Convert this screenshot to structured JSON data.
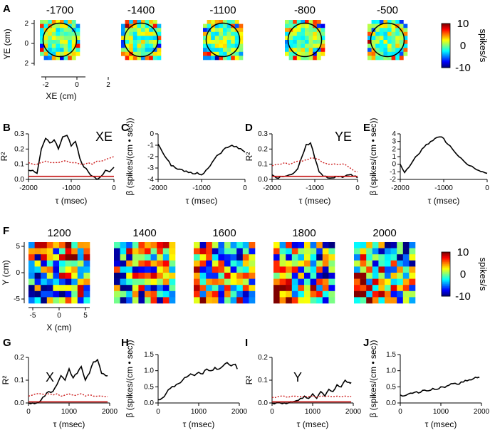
{
  "panel_letters": {
    "A": "A",
    "B": "B",
    "C": "C",
    "D": "D",
    "E": "E",
    "F": "F",
    "G": "G",
    "H": "H",
    "I": "I",
    "J": "J"
  },
  "colors": {
    "line": "#000000",
    "threshold": "#c41212",
    "threshold_dash": "#cc1b1b"
  },
  "chart_data": [
    {
      "id": "A",
      "type": "heatmap",
      "titles": [
        "-1700",
        "-1400",
        "-1100",
        "-800",
        "-500"
      ],
      "xlabel": "XE (cm)",
      "ylabel": "YE (cm)",
      "xticks": [
        "-2",
        "0",
        "2"
      ],
      "yticks": [
        "2",
        "0",
        "2"
      ],
      "colorbar": {
        "label": "spikes/s",
        "ticks": [
          "10",
          "0",
          "-10"
        ],
        "range": [
          -10,
          10
        ]
      },
      "grid_size": 10
    },
    {
      "id": "B",
      "type": "line",
      "annotation": "XE",
      "xlabel": "τ (msec)",
      "ylabel": "R²",
      "xlim": [
        -2000,
        0
      ],
      "ylim": [
        0,
        0.3
      ],
      "xticks": [
        "-2000",
        "-1000",
        "0"
      ],
      "yticks": [
        "0.0",
        "0.1",
        "0.2",
        "0.3"
      ],
      "x": [
        -2000,
        -1900,
        -1800,
        -1700,
        -1600,
        -1500,
        -1400,
        -1300,
        -1200,
        -1100,
        -1000,
        -900,
        -800,
        -700,
        -600,
        -500,
        -400,
        -300,
        -200,
        -100,
        0
      ],
      "series": [
        {
          "name": "R2",
          "values": [
            0.06,
            0.06,
            0.04,
            0.2,
            0.27,
            0.24,
            0.26,
            0.2,
            0.28,
            0.29,
            0.22,
            0.25,
            0.14,
            0.08,
            0.05,
            0.02,
            0.0,
            0.02,
            0.06,
            0.05,
            0.08
          ]
        },
        {
          "name": "threshold-99",
          "values": [
            0.11,
            0.1,
            0.1,
            0.11,
            0.12,
            0.11,
            0.11,
            0.11,
            0.12,
            0.12,
            0.11,
            0.11,
            0.1,
            0.1,
            0.11,
            0.1,
            0.12,
            0.12,
            0.13,
            0.14,
            0.15
          ]
        },
        {
          "name": "threshold-95",
          "values": [
            0.02,
            0.02,
            0.02,
            0.02,
            0.02,
            0.02,
            0.02,
            0.02,
            0.02,
            0.02,
            0.02,
            0.02,
            0.02,
            0.02,
            0.02,
            0.02,
            0.02,
            0.02,
            0.02,
            0.02,
            0.02
          ]
        }
      ]
    },
    {
      "id": "C",
      "type": "line",
      "xlabel": "τ (msec)",
      "ylabel": "β (spikes/(cm • sec))",
      "xlim": [
        -2000,
        0
      ],
      "ylim": [
        -4,
        0
      ],
      "xticks": [
        "-2000",
        "-1000",
        "0"
      ],
      "yticks": [
        "0",
        "-1",
        "-2",
        "-3",
        "-4"
      ],
      "x": [
        -2000,
        -1900,
        -1800,
        -1700,
        -1600,
        -1500,
        -1400,
        -1300,
        -1200,
        -1100,
        -1000,
        -900,
        -800,
        -700,
        -600,
        -500,
        -400,
        -300,
        -200,
        -100,
        0
      ],
      "series": [
        {
          "name": "beta",
          "values": [
            -0.9,
            -1.6,
            -2.2,
            -2.8,
            -3.0,
            -3.1,
            -3.3,
            -3.4,
            -3.5,
            -3.4,
            -3.6,
            -3.2,
            -2.8,
            -2.2,
            -1.8,
            -1.4,
            -1.2,
            -1.0,
            -1.1,
            -1.3,
            -1.6
          ]
        }
      ]
    },
    {
      "id": "D",
      "type": "line",
      "annotation": "YE",
      "xlabel": "τ (msec)",
      "ylabel": "R²",
      "xlim": [
        -2000,
        0
      ],
      "ylim": [
        0,
        0.3
      ],
      "xticks": [
        "-2000",
        "-1000",
        "0"
      ],
      "yticks": [
        "0.0",
        "0.1",
        "0.2",
        "0.3"
      ],
      "x": [
        -2000,
        -1900,
        -1800,
        -1700,
        -1600,
        -1500,
        -1400,
        -1300,
        -1200,
        -1100,
        -1000,
        -900,
        -800,
        -700,
        -600,
        -500,
        -400,
        -300,
        -200,
        -100,
        0
      ],
      "series": [
        {
          "name": "R2",
          "values": [
            0.03,
            0.01,
            0.02,
            0.02,
            0.03,
            0.04,
            0.07,
            0.15,
            0.23,
            0.24,
            0.14,
            0.05,
            0.02,
            0.01,
            0.01,
            0.02,
            0.02,
            0.02,
            0.03,
            0.02,
            0.01
          ]
        },
        {
          "name": "threshold-99",
          "values": [
            0.09,
            0.1,
            0.1,
            0.11,
            0.1,
            0.11,
            0.12,
            0.12,
            0.13,
            0.14,
            0.14,
            0.13,
            0.11,
            0.1,
            0.1,
            0.1,
            0.1,
            0.1,
            0.08,
            0.06,
            0.05
          ]
        },
        {
          "name": "threshold-95",
          "values": [
            0.02,
            0.02,
            0.02,
            0.02,
            0.02,
            0.02,
            0.02,
            0.02,
            0.02,
            0.02,
            0.02,
            0.02,
            0.02,
            0.02,
            0.02,
            0.02,
            0.02,
            0.02,
            0.02,
            0.02,
            0.02
          ]
        }
      ]
    },
    {
      "id": "E",
      "type": "line",
      "xlabel": "τ (msec)",
      "ylabel": "β (spikes/(cm • sec))",
      "xlim": [
        -2000,
        0
      ],
      "ylim": [
        -2,
        4
      ],
      "xticks": [
        "-2000",
        "-1000",
        "0"
      ],
      "yticks": [
        "4",
        "3",
        "2",
        "1",
        "0",
        "-1",
        "-2"
      ],
      "x": [
        -2000,
        -1900,
        -1800,
        -1700,
        -1600,
        -1500,
        -1400,
        -1300,
        -1200,
        -1100,
        -1000,
        -900,
        -800,
        -700,
        -600,
        -500,
        -400,
        -300,
        -200,
        -100,
        0
      ],
      "series": [
        {
          "name": "beta",
          "values": [
            0.0,
            -1.1,
            -0.4,
            0.5,
            1.2,
            2.0,
            2.6,
            3.0,
            3.4,
            3.6,
            3.4,
            2.6,
            2.0,
            1.3,
            0.8,
            0.2,
            -0.2,
            -0.5,
            -0.8,
            -1.0,
            -1.2
          ]
        }
      ]
    },
    {
      "id": "F",
      "type": "heatmap",
      "titles": [
        "1200",
        "1400",
        "1600",
        "1800",
        "2000"
      ],
      "xlabel": "X (cm)",
      "ylabel": "Y (cm)",
      "xticks": [
        "-5",
        "0",
        "5"
      ],
      "yticks": [
        "5",
        "0",
        "-5"
      ],
      "colorbar": {
        "label": "spikes/s",
        "ticks": [
          "10",
          "0",
          "-10"
        ],
        "range": [
          -10,
          10
        ]
      },
      "grid_size": 10
    },
    {
      "id": "G",
      "type": "line",
      "annotation": "X",
      "xlabel": "τ (msec)",
      "ylabel": "R²",
      "xlim": [
        0,
        2000
      ],
      "ylim": [
        0,
        0.2
      ],
      "xticks": [
        "0",
        "1000",
        "2000"
      ],
      "yticks": [
        "0.0",
        "0.1",
        "0.2"
      ],
      "x": [
        0,
        100,
        200,
        300,
        400,
        500,
        600,
        700,
        800,
        900,
        1000,
        1100,
        1200,
        1300,
        1400,
        1500,
        1600,
        1700,
        1800,
        1900,
        1950
      ],
      "series": [
        {
          "name": "R2",
          "values": [
            0.0,
            0.0,
            0.0,
            0.01,
            0.03,
            0.05,
            0.05,
            0.08,
            0.12,
            0.1,
            0.15,
            0.11,
            0.13,
            0.16,
            0.1,
            0.13,
            0.18,
            0.19,
            0.13,
            0.12,
            0.12
          ]
        },
        {
          "name": "threshold-99",
          "values": [
            0.03,
            0.035,
            0.04,
            0.04,
            0.035,
            0.04,
            0.035,
            0.04,
            0.03,
            0.035,
            0.04,
            0.035,
            0.035,
            0.04,
            0.03,
            0.035,
            0.03,
            0.03,
            0.03,
            0.028,
            0.028
          ]
        },
        {
          "name": "threshold-95",
          "values": [
            0.005,
            0.005,
            0.005,
            0.005,
            0.005,
            0.005,
            0.005,
            0.005,
            0.005,
            0.005,
            0.005,
            0.005,
            0.005,
            0.005,
            0.005,
            0.005,
            0.005,
            0.005,
            0.005,
            0.005,
            0.005
          ]
        }
      ]
    },
    {
      "id": "H",
      "type": "line",
      "xlabel": "τ (msec)",
      "ylabel": "β (spikes/(cm • sec))",
      "xlim": [
        0,
        2000
      ],
      "ylim": [
        0,
        1.5
      ],
      "xticks": [
        "0",
        "1000",
        "2000"
      ],
      "yticks": [
        "0.0",
        "0.5",
        "1.0",
        "1.5"
      ],
      "x": [
        0,
        100,
        200,
        300,
        400,
        500,
        600,
        700,
        800,
        900,
        1000,
        1100,
        1200,
        1300,
        1400,
        1500,
        1600,
        1700,
        1800,
        1900,
        1950
      ],
      "series": [
        {
          "name": "beta",
          "values": [
            0.1,
            0.15,
            0.3,
            0.45,
            0.5,
            0.6,
            0.7,
            0.8,
            0.9,
            0.85,
            0.95,
            0.9,
            1.05,
            1.0,
            1.1,
            1.05,
            1.15,
            1.25,
            1.15,
            1.2,
            1.05
          ]
        }
      ]
    },
    {
      "id": "I",
      "type": "line",
      "annotation": "Y",
      "xlabel": "τ (msec)",
      "ylabel": "R²",
      "xlim": [
        0,
        2000
      ],
      "ylim": [
        0,
        0.2
      ],
      "xticks": [
        "0",
        "1000",
        "2000"
      ],
      "yticks": [
        "0.0",
        "0.1",
        "0.2"
      ],
      "x": [
        0,
        100,
        200,
        300,
        400,
        500,
        600,
        700,
        800,
        900,
        1000,
        1100,
        1200,
        1300,
        1400,
        1500,
        1600,
        1700,
        1800,
        1900,
        1950
      ],
      "series": [
        {
          "name": "R2",
          "values": [
            0.0,
            0.0,
            0.0,
            0.0,
            0.0,
            0.005,
            0.01,
            0.02,
            0.03,
            0.02,
            0.04,
            0.02,
            0.05,
            0.03,
            0.06,
            0.05,
            0.08,
            0.07,
            0.1,
            0.09,
            0.09
          ]
        },
        {
          "name": "threshold-99",
          "values": [
            0.025,
            0.025,
            0.03,
            0.03,
            0.025,
            0.03,
            0.03,
            0.028,
            0.03,
            0.028,
            0.03,
            0.025,
            0.03,
            0.028,
            0.03,
            0.028,
            0.03,
            0.028,
            0.03,
            0.028,
            0.028
          ]
        },
        {
          "name": "threshold-95",
          "values": [
            0.005,
            0.005,
            0.005,
            0.005,
            0.005,
            0.005,
            0.005,
            0.005,
            0.005,
            0.005,
            0.005,
            0.005,
            0.005,
            0.005,
            0.005,
            0.005,
            0.005,
            0.005,
            0.005,
            0.005,
            0.005
          ]
        }
      ]
    },
    {
      "id": "J",
      "type": "line",
      "xlabel": "τ (msec)",
      "ylabel": "β (spikes/(cm • sec))",
      "xlim": [
        0,
        2000
      ],
      "ylim": [
        0,
        1.5
      ],
      "xticks": [
        "0",
        "1000",
        "2000"
      ],
      "yticks": [
        "0.0",
        "0.5",
        "1.0",
        "1.5"
      ],
      "x": [
        0,
        100,
        200,
        300,
        400,
        500,
        600,
        700,
        800,
        900,
        1000,
        1100,
        1200,
        1300,
        1400,
        1500,
        1600,
        1700,
        1800,
        1900,
        1950
      ],
      "series": [
        {
          "name": "beta",
          "values": [
            0.25,
            0.22,
            0.28,
            0.3,
            0.35,
            0.33,
            0.4,
            0.38,
            0.45,
            0.42,
            0.5,
            0.48,
            0.55,
            0.6,
            0.58,
            0.65,
            0.7,
            0.72,
            0.75,
            0.78,
            0.78
          ]
        }
      ]
    }
  ]
}
